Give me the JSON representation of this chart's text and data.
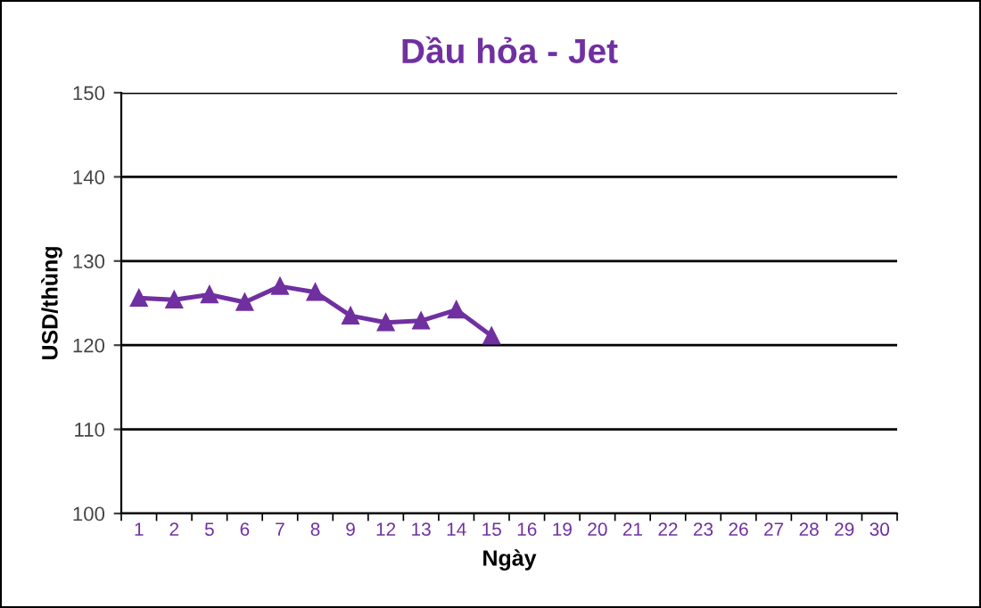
{
  "chart_data": {
    "type": "line",
    "title": "Dầu hỏa - Jet",
    "xlabel": "Ngày",
    "ylabel": "USD/thùng",
    "categories": [
      "1",
      "2",
      "5",
      "6",
      "7",
      "8",
      "9",
      "12",
      "13",
      "14",
      "15",
      "16",
      "19",
      "20",
      "21",
      "22",
      "23",
      "26",
      "27",
      "28",
      "29",
      "30"
    ],
    "series": [
      {
        "color": "#7030a0",
        "values": [
          125.6,
          125.4,
          126.0,
          125.1,
          127.0,
          126.3,
          123.5,
          122.7,
          122.9,
          124.2,
          121.1,
          null,
          null,
          null,
          null,
          null,
          null,
          null,
          null,
          null,
          null,
          null
        ]
      }
    ],
    "ylim": [
      100,
      150
    ],
    "yticks": [
      100,
      110,
      120,
      130,
      140,
      150
    ],
    "grid": "y",
    "marker": "triangle",
    "line_style": "solid"
  }
}
